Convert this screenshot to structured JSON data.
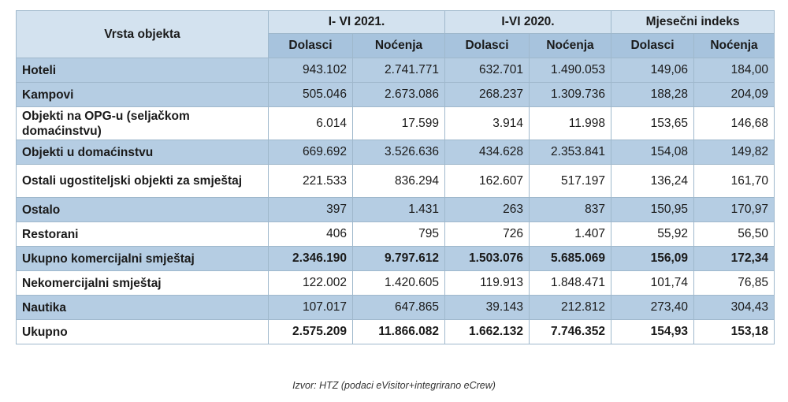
{
  "table": {
    "header": {
      "row_label": "Vrsta objekta",
      "groups": [
        "I- VI 2021.",
        "I-VI 2020.",
        "Mjesečni indeks"
      ],
      "sub": [
        "Dolasci",
        "Noćenja",
        "Dolasci",
        "Noćenja",
        "Dolasci",
        "Noćenja"
      ]
    },
    "rows": [
      {
        "label": "Hoteli",
        "values": [
          "943.102",
          "2.741.771",
          "632.701",
          "1.490.053",
          "149,06",
          "184,00"
        ]
      },
      {
        "label": "Kampovi",
        "values": [
          "505.046",
          "2.673.086",
          "268.237",
          "1.309.736",
          "188,28",
          "204,09"
        ]
      },
      {
        "label": "Objekti na OPG-u (seljačkom domaćinstvu)",
        "values": [
          "6.014",
          "17.599",
          "3.914",
          "11.998",
          "153,65",
          "146,68"
        ]
      },
      {
        "label": "Objekti u domaćinstvu",
        "values": [
          "669.692",
          "3.526.636",
          "434.628",
          "2.353.841",
          "154,08",
          "149,82"
        ]
      },
      {
        "label": "Ostali ugostiteljski objekti za smještaj",
        "values": [
          "221.533",
          "836.294",
          "162.607",
          "517.197",
          "136,24",
          "161,70"
        ]
      },
      {
        "label": "Ostalo",
        "values": [
          "397",
          "1.431",
          "263",
          "837",
          "150,95",
          "170,97"
        ]
      },
      {
        "label": "Restorani",
        "values": [
          "406",
          "795",
          "726",
          "1.407",
          "55,92",
          "56,50"
        ]
      },
      {
        "label": "Ukupno komercijalni smještaj",
        "values": [
          "2.346.190",
          "9.797.612",
          "1.503.076",
          "5.685.069",
          "156,09",
          "172,34"
        ]
      },
      {
        "label": "Nekomercijalni smještaj",
        "values": [
          "122.002",
          "1.420.605",
          "119.913",
          "1.848.471",
          "101,74",
          "76,85"
        ]
      },
      {
        "label": "Nautika",
        "values": [
          "107.017",
          "647.865",
          "39.143",
          "212.812",
          "273,40",
          "304,43"
        ]
      },
      {
        "label": "Ukupno",
        "values": [
          "2.575.209",
          "11.866.082",
          "1.662.132",
          "7.746.352",
          "154,93",
          "153,18"
        ]
      }
    ]
  },
  "source": "Izvor: HTZ (podaci eVisitor+integrirano eCrew)",
  "colors": {
    "header": "#d3e2ef",
    "subheader": "#a7c3dd",
    "band": "#b5cde3",
    "border": "#9fb8cc"
  }
}
